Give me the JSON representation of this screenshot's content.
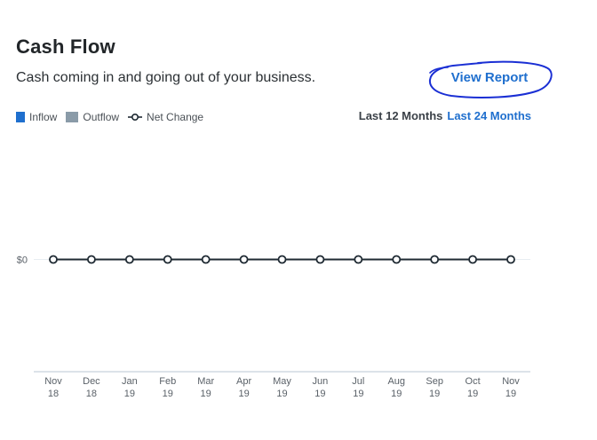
{
  "header": {
    "title": "Cash Flow",
    "subtitle": "Cash coming in and going out of your business.",
    "view_report_label": "View Report"
  },
  "legend": {
    "items": [
      {
        "label": "Inflow",
        "color": "#1f6fce",
        "icon": "square-swatch"
      },
      {
        "label": "Outflow",
        "color": "#8a9ba8",
        "icon": "square-swatch"
      },
      {
        "label": "Net Change",
        "color": "#1f2a33",
        "icon": "line-circle-marker"
      }
    ]
  },
  "range_toggle": {
    "selected": "Last 12 Months",
    "options": [
      "Last 12 Months",
      "Last 24 Months"
    ]
  },
  "colors": {
    "link": "#1f6fce",
    "net_line": "#1f2a33",
    "axis": "#b8c7d3",
    "zero_grid": "#e8edf1",
    "tick_text": "#5a6168",
    "annotation_circle": "#1a2fd4"
  },
  "chart_data": {
    "type": "line",
    "y_tick_labels": [
      "$0"
    ],
    "categories": [
      [
        "Nov",
        "18"
      ],
      [
        "Dec",
        "18"
      ],
      [
        "Jan",
        "19"
      ],
      [
        "Feb",
        "19"
      ],
      [
        "Mar",
        "19"
      ],
      [
        "Apr",
        "19"
      ],
      [
        "May",
        "19"
      ],
      [
        "Jun",
        "19"
      ],
      [
        "Jul",
        "19"
      ],
      [
        "Aug",
        "19"
      ],
      [
        "Sep",
        "19"
      ],
      [
        "Oct",
        "19"
      ],
      [
        "Nov",
        "19"
      ]
    ],
    "series": [
      {
        "name": "Net Change",
        "values": [
          0,
          0,
          0,
          0,
          0,
          0,
          0,
          0,
          0,
          0,
          0,
          0,
          0
        ]
      },
      {
        "name": "Inflow",
        "values": [
          0,
          0,
          0,
          0,
          0,
          0,
          0,
          0,
          0,
          0,
          0,
          0,
          0
        ]
      },
      {
        "name": "Outflow",
        "values": [
          0,
          0,
          0,
          0,
          0,
          0,
          0,
          0,
          0,
          0,
          0,
          0,
          0
        ]
      }
    ],
    "ylim": [
      -1,
      1
    ],
    "grid": false
  }
}
